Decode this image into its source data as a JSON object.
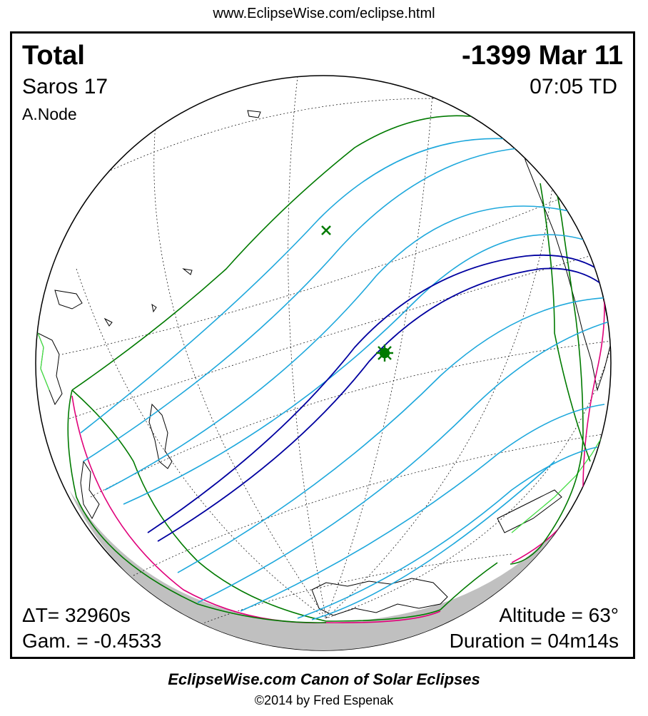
{
  "header": {
    "url": "www.EclipseWise.com/eclipse.html"
  },
  "eclipse": {
    "type": "Total",
    "date": "-1399 Mar 11",
    "saros": "Saros  17",
    "time": "07:05 TD",
    "node": "A.Node",
    "delta_t": "ΔT=  32960s",
    "gamma": "Gam. = -0.4533",
    "altitude": "Altitude = 63°",
    "duration": "Duration = 04m14s"
  },
  "footer": {
    "canon": "EclipseWise.com Canon of Solar Eclipses",
    "copyright": "©2014 by Fred Espenak"
  },
  "colors": {
    "penumbral_limits": "#007a00",
    "central_path": "#0000a0",
    "penumbral_contours": "#1ea8dc",
    "sunrise_sunset": "#e0007a",
    "coastlines": "#000000",
    "night_side": "#c0c0c0",
    "greatest_eclipse": "#007a00"
  }
}
